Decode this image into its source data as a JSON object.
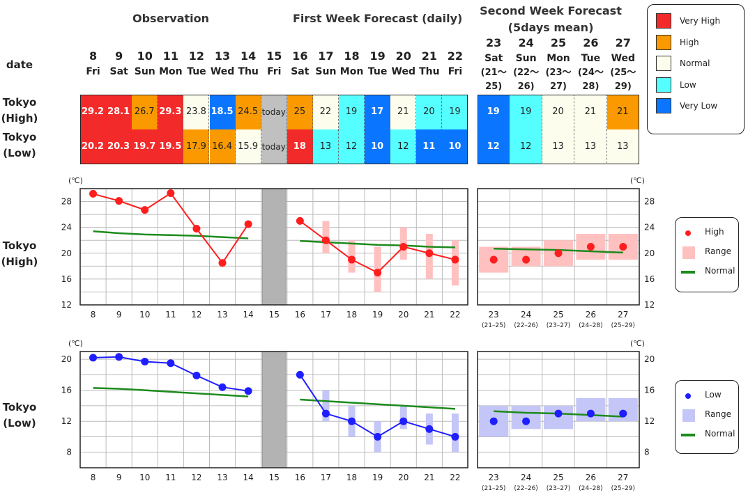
{
  "headers": {
    "observation": "Observation",
    "first_week": "First Week Forecast (daily)",
    "second_week": [
      "Second Week Forecast",
      "(5days mean)"
    ],
    "date_label": "date"
  },
  "daily_dates": [
    {
      "day": "8",
      "dow": "Fri"
    },
    {
      "day": "9",
      "dow": "Sat"
    },
    {
      "day": "10",
      "dow": "Sun"
    },
    {
      "day": "11",
      "dow": "Mon"
    },
    {
      "day": "12",
      "dow": "Tue"
    },
    {
      "day": "13",
      "dow": "Wed"
    },
    {
      "day": "14",
      "dow": "Thu"
    },
    {
      "day": "15",
      "dow": "Fri"
    },
    {
      "day": "16",
      "dow": "Sat"
    },
    {
      "day": "17",
      "dow": "Sun"
    },
    {
      "day": "18",
      "dow": "Mon"
    },
    {
      "day": "19",
      "dow": "Tue"
    },
    {
      "day": "20",
      "dow": "Wed"
    },
    {
      "day": "21",
      "dow": "Thu"
    },
    {
      "day": "22",
      "dow": "Fri"
    }
  ],
  "week2_dates": [
    {
      "day": "23",
      "dow": "Sat",
      "range": [
        "(21〜",
        "25)"
      ]
    },
    {
      "day": "24",
      "dow": "Sun",
      "range": [
        "(22〜",
        "26)"
      ]
    },
    {
      "day": "25",
      "dow": "Mon",
      "range": [
        "(23〜",
        "27)"
      ]
    },
    {
      "day": "26",
      "dow": "Tue",
      "range": [
        "(24〜",
        "28)"
      ]
    },
    {
      "day": "27",
      "dow": "Wed",
      "range": [
        "(25〜",
        "29)"
      ]
    }
  ],
  "row_labels": {
    "high": [
      "Tokyo",
      "(High)"
    ],
    "low": [
      "Tokyo",
      "(Low)"
    ]
  },
  "category_colors": {
    "very_high": "#f32a2a",
    "high": "#fa9a00",
    "normal": "#fdfdee",
    "low": "#55ffff",
    "very_low": "#0a76ff",
    "today": "#c0c0c0"
  },
  "table": {
    "high_daily": [
      {
        "v": "29.2",
        "c": "very_high"
      },
      {
        "v": "28.1",
        "c": "very_high"
      },
      {
        "v": "26.7",
        "c": "high"
      },
      {
        "v": "29.3",
        "c": "very_high"
      },
      {
        "v": "23.8",
        "c": "normal"
      },
      {
        "v": "18.5",
        "c": "very_low"
      },
      {
        "v": "24.5",
        "c": "high"
      },
      {
        "v": "today",
        "c": "today"
      },
      {
        "v": "25",
        "c": "high"
      },
      {
        "v": "22",
        "c": "normal"
      },
      {
        "v": "19",
        "c": "low"
      },
      {
        "v": "17",
        "c": "very_low"
      },
      {
        "v": "21",
        "c": "normal"
      },
      {
        "v": "20",
        "c": "low"
      },
      {
        "v": "19",
        "c": "low"
      }
    ],
    "low_daily": [
      {
        "v": "20.2",
        "c": "very_high"
      },
      {
        "v": "20.3",
        "c": "very_high"
      },
      {
        "v": "19.7",
        "c": "very_high"
      },
      {
        "v": "19.5",
        "c": "very_high"
      },
      {
        "v": "17.9",
        "c": "high"
      },
      {
        "v": "16.4",
        "c": "high"
      },
      {
        "v": "15.9",
        "c": "normal"
      },
      {
        "v": "today",
        "c": "today"
      },
      {
        "v": "18",
        "c": "very_high"
      },
      {
        "v": "13",
        "c": "low"
      },
      {
        "v": "12",
        "c": "low"
      },
      {
        "v": "10",
        "c": "very_low"
      },
      {
        "v": "12",
        "c": "low"
      },
      {
        "v": "11",
        "c": "very_low"
      },
      {
        "v": "10",
        "c": "very_low"
      }
    ],
    "high_week2": [
      {
        "v": "19",
        "c": "very_low"
      },
      {
        "v": "19",
        "c": "low"
      },
      {
        "v": "20",
        "c": "normal"
      },
      {
        "v": "21",
        "c": "normal"
      },
      {
        "v": "21",
        "c": "high"
      }
    ],
    "low_week2": [
      {
        "v": "12",
        "c": "very_low"
      },
      {
        "v": "12",
        "c": "low"
      },
      {
        "v": "13",
        "c": "normal"
      },
      {
        "v": "13",
        "c": "normal"
      },
      {
        "v": "13",
        "c": "normal"
      }
    ]
  },
  "category_legend": [
    {
      "label": "Very High",
      "c": "very_high"
    },
    {
      "label": "High",
      "c": "high"
    },
    {
      "label": "Normal",
      "c": "normal"
    },
    {
      "label": "Low",
      "c": "low"
    },
    {
      "label": "Very Low",
      "c": "very_low"
    }
  ],
  "chart_data": [
    {
      "type": "line",
      "id": "high",
      "unit": "(℃)",
      "ylim": [
        12,
        30
      ],
      "yticks": [
        12,
        16,
        20,
        24,
        28
      ],
      "grid": true,
      "legend_placement": "right",
      "obs_x": [
        "8",
        "9",
        "10",
        "11",
        "12",
        "13",
        "14"
      ],
      "obs_values": [
        29.2,
        28.1,
        26.7,
        29.3,
        23.8,
        18.5,
        24.5
      ],
      "obs_normal": [
        23.4,
        23.1,
        22.9,
        22.8,
        22.7,
        22.5,
        22.3
      ],
      "today_label": "15",
      "fc_x": [
        "16",
        "17",
        "18",
        "19",
        "20",
        "21",
        "22"
      ],
      "fc_values": [
        25,
        22,
        19,
        17,
        21,
        20,
        19
      ],
      "fc_range": [
        null,
        [
          20,
          25
        ],
        [
          17,
          22
        ],
        [
          14,
          21
        ],
        [
          19,
          24
        ],
        [
          16,
          23
        ],
        [
          15,
          22
        ]
      ],
      "fc_normal": [
        21.9,
        21.7,
        21.5,
        21.3,
        21.2,
        21.0,
        20.9
      ],
      "w2_x": [
        "23",
        "24",
        "25",
        "26",
        "27"
      ],
      "w2_sub": [
        "(21–25)",
        "(22–26)",
        "(23–27)",
        "(24–28)",
        "(25–29)"
      ],
      "w2_values": [
        19,
        19,
        20,
        21,
        21
      ],
      "w2_range": [
        [
          17,
          21
        ],
        [
          18,
          21
        ],
        [
          18,
          22
        ],
        [
          19,
          23
        ],
        [
          19,
          23
        ]
      ],
      "w2_normal": [
        20.7,
        20.6,
        20.5,
        20.3,
        20.1
      ],
      "point_color": "#ff1e1e",
      "line_color": "#ff1e1e",
      "range_color": "#ffc0c0",
      "normal_color": "#1c8b1c",
      "legend": [
        "High",
        "Range",
        "Normal"
      ]
    },
    {
      "type": "line",
      "id": "low",
      "unit": "(℃)",
      "ylim": [
        6,
        21
      ],
      "yticks": [
        8,
        12,
        16,
        20
      ],
      "grid": true,
      "legend_placement": "right",
      "obs_x": [
        "8",
        "9",
        "10",
        "11",
        "12",
        "13",
        "14"
      ],
      "obs_values": [
        20.2,
        20.3,
        19.7,
        19.5,
        17.9,
        16.4,
        15.9
      ],
      "obs_normal": [
        16.3,
        16.2,
        16.0,
        15.8,
        15.6,
        15.4,
        15.2
      ],
      "today_label": "15",
      "fc_x": [
        "16",
        "17",
        "18",
        "19",
        "20",
        "21",
        "22"
      ],
      "fc_values": [
        18,
        13,
        12,
        10,
        12,
        11,
        10
      ],
      "fc_range": [
        null,
        [
          12,
          16
        ],
        [
          10,
          14
        ],
        [
          8,
          12
        ],
        [
          11,
          14
        ],
        [
          9,
          13
        ],
        [
          8,
          13
        ]
      ],
      "fc_normal": [
        14.8,
        14.6,
        14.4,
        14.2,
        14.0,
        13.8,
        13.6
      ],
      "w2_x": [
        "23",
        "24",
        "25",
        "26",
        "27"
      ],
      "w2_sub": [
        "(21–25)",
        "(22–26)",
        "(23–27)",
        "(24–28)",
        "(25–29)"
      ],
      "w2_values": [
        12,
        12,
        13,
        13,
        13
      ],
      "w2_range": [
        [
          10,
          14
        ],
        [
          11,
          14
        ],
        [
          11,
          14
        ],
        [
          12,
          15
        ],
        [
          12,
          15
        ]
      ],
      "w2_normal": [
        13.3,
        13.1,
        13.0,
        12.8,
        12.6
      ],
      "point_color": "#1e1eff",
      "line_color": "#1e1eff",
      "range_color": "#c4c6f7",
      "normal_color": "#1c8b1c",
      "legend": [
        "Low",
        "Range",
        "Normal"
      ]
    }
  ]
}
